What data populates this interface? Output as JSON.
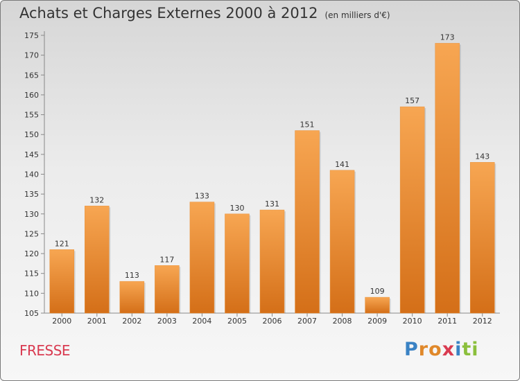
{
  "title": "Achats et Charges Externes 2000 à 2012",
  "unit": "(en milliers d'€)",
  "commune": "FRESSE",
  "logo": {
    "letters": [
      {
        "ch": "P",
        "color": "#3a82c4"
      },
      {
        "ch": "r",
        "color": "#e0882a"
      },
      {
        "ch": "o",
        "color": "#e0882a"
      },
      {
        "ch": "x",
        "color": "#d93a50"
      },
      {
        "ch": "i",
        "color": "#3a82c4"
      },
      {
        "ch": "t",
        "color": "#8bbf3c"
      },
      {
        "ch": "i",
        "color": "#8bbf3c"
      }
    ]
  },
  "chart_data": {
    "type": "bar",
    "title": "Achats et Charges Externes 2000 à 2012",
    "subtitle": "(en milliers d'€)",
    "categories": [
      "2000",
      "2001",
      "2002",
      "2003",
      "2004",
      "2005",
      "2006",
      "2007",
      "2008",
      "2009",
      "2010",
      "2011",
      "2012"
    ],
    "values": [
      121,
      132,
      113,
      117,
      133,
      130,
      131,
      151,
      141,
      109,
      157,
      173,
      143
    ],
    "ylim": [
      105,
      175
    ],
    "yticks": [
      105,
      110,
      115,
      120,
      125,
      130,
      135,
      140,
      145,
      150,
      155,
      160,
      165,
      170,
      175
    ],
    "grid": false,
    "bar_color": "#f39c45",
    "bar_color_dark": "#d6741c"
  }
}
